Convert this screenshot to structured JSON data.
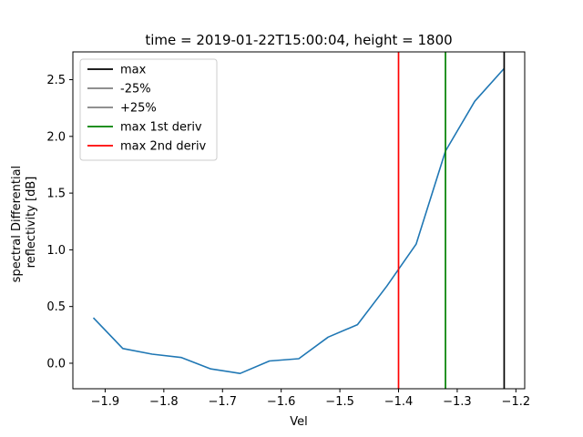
{
  "chart_data": {
    "type": "line",
    "title": "time = 2019-01-22T15:00:04, height = 1800",
    "xlabel": "Vel",
    "ylabel": [
      "spectral Differential",
      "reflectivity [dB]"
    ],
    "xlim": [
      -1.955,
      -1.185
    ],
    "ylim": [
      -0.225,
      2.745
    ],
    "xticks": [
      -1.9,
      -1.8,
      -1.7,
      -1.6,
      -1.5,
      -1.4,
      -1.3,
      -1.2
    ],
    "xtick_labels": [
      "−1.9",
      "−1.8",
      "−1.7",
      "−1.6",
      "−1.5",
      "−1.4",
      "−1.3",
      "−1.2"
    ],
    "yticks": [
      0.0,
      0.5,
      1.0,
      1.5,
      2.0,
      2.5
    ],
    "ytick_labels": [
      "0.0",
      "0.5",
      "1.0",
      "1.5",
      "2.0",
      "2.5"
    ],
    "series": [
      {
        "color": "#1f77b4",
        "x": [
          -1.92,
          -1.87,
          -1.82,
          -1.77,
          -1.72,
          -1.67,
          -1.62,
          -1.57,
          -1.52,
          -1.47,
          -1.42,
          -1.37,
          -1.32,
          -1.27,
          -1.22
        ],
        "y": [
          0.4,
          0.13,
          0.08,
          0.05,
          -0.05,
          -0.09,
          0.02,
          0.04,
          0.23,
          0.34,
          0.68,
          1.05,
          1.87,
          2.31,
          2.6
        ]
      }
    ],
    "vlines": [
      {
        "name": "max",
        "x": -1.22,
        "color": "#000000"
      },
      {
        "name": "-25%",
        "x": null,
        "color": "#808080"
      },
      {
        "name": "+25%",
        "x": null,
        "color": "#808080"
      },
      {
        "name": "max 1st deriv",
        "x": -1.32,
        "color": "#008000"
      },
      {
        "name": "max 2nd deriv",
        "x": -1.4,
        "color": "#ff0000"
      }
    ],
    "legend_position": "top-left",
    "grid": false
  }
}
